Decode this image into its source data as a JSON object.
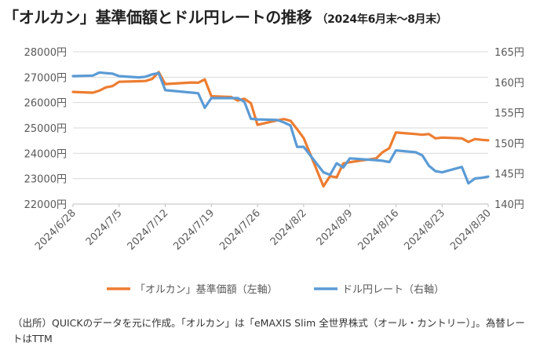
{
  "header": {
    "title": "「オルカン」基準価額とドル円レートの推移",
    "subtitle": "（2024年6月末～8月末）"
  },
  "footnote": "（出所）QUICKのデータを元に作成。「オルカン」は「eMAXIS Slim 全世界株式（オール・カントリー）」。為替レートはTTM",
  "colors": {
    "nav": "#ED7D31",
    "fx": "#5B9BD5",
    "grid": "#D9D9D9",
    "text": "#595959"
  },
  "chart_data": {
    "type": "line",
    "xlabel": "",
    "x_tick_labels": [
      "2024/6/28",
      "2024/7/5",
      "2024/7/12",
      "2024/7/19",
      "2024/7/26",
      "2024/8/2",
      "2024/8/9",
      "2024/8/16",
      "2024/8/23",
      "2024/8/30"
    ],
    "x": [
      "2024/6/28",
      "2024/7/1",
      "2024/7/2",
      "2024/7/3",
      "2024/7/4",
      "2024/7/5",
      "2024/7/8",
      "2024/7/9",
      "2024/7/10",
      "2024/7/11",
      "2024/7/12",
      "2024/7/16",
      "2024/7/17",
      "2024/7/18",
      "2024/7/19",
      "2024/7/22",
      "2024/7/23",
      "2024/7/24",
      "2024/7/25",
      "2024/7/26",
      "2024/7/29",
      "2024/7/30",
      "2024/7/31",
      "2024/8/1",
      "2024/8/2",
      "2024/8/5",
      "2024/8/6",
      "2024/8/7",
      "2024/8/8",
      "2024/8/9",
      "2024/8/13",
      "2024/8/14",
      "2024/8/15",
      "2024/8/16",
      "2024/8/19",
      "2024/8/20",
      "2024/8/21",
      "2024/8/22",
      "2024/8/23",
      "2024/8/26",
      "2024/8/27",
      "2024/8/28",
      "2024/8/29",
      "2024/8/30"
    ],
    "y_left": {
      "label": "",
      "ylim": [
        22000,
        28000
      ],
      "ticks": [
        22000,
        23000,
        24000,
        25000,
        26000,
        27000,
        28000
      ],
      "tick_suffix": "円"
    },
    "y_right": {
      "label": "",
      "ylim": [
        140,
        165
      ],
      "ticks": [
        140,
        145,
        150,
        155,
        160,
        165
      ],
      "tick_suffix": "円"
    },
    "grid": true,
    "legend": "bottom",
    "series": [
      {
        "name": "「オルカン」基準価額（左軸）",
        "axis": "left",
        "values": [
          26420,
          26390,
          26470,
          26600,
          26650,
          26820,
          26840,
          26850,
          26930,
          27200,
          26730,
          26790,
          26780,
          26910,
          26250,
          26220,
          26080,
          26150,
          25970,
          25120,
          25300,
          25350,
          25280,
          24950,
          24600,
          22700,
          23100,
          23050,
          23600,
          23650,
          23800,
          24050,
          24200,
          24820,
          24760,
          24730,
          24760,
          24590,
          24620,
          24590,
          24450,
          24560,
          24530,
          24510
        ]
      },
      {
        "name": "ドル円レート（右軸）",
        "axis": "right",
        "values": [
          161.0,
          161.1,
          161.6,
          161.5,
          161.4,
          161.0,
          160.8,
          160.9,
          161.3,
          161.5,
          158.7,
          158.3,
          158.2,
          155.8,
          157.4,
          157.4,
          157.4,
          156.8,
          154.0,
          153.9,
          153.8,
          153.4,
          152.9,
          149.4,
          149.4,
          145.2,
          144.8,
          146.7,
          146.0,
          147.5,
          147.2,
          147.1,
          146.9,
          148.8,
          148.5,
          148.0,
          146.3,
          145.4,
          145.2,
          146.1,
          143.4,
          144.2,
          144.3,
          144.5
        ]
      }
    ]
  }
}
